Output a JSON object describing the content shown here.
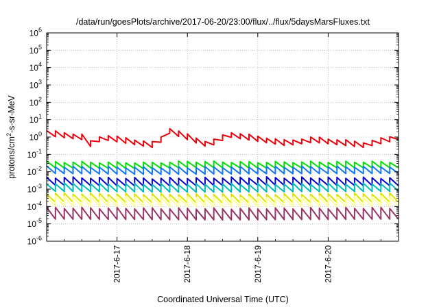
{
  "chart_data": {
    "type": "line",
    "title": "/data/run/goesPlots/archive/2017-06-20/23:00/flux/../flux/5daysMarsFluxes.txt",
    "xlabel": "Coordinated Universal Time (UTC)",
    "ylabel_parts": [
      "protons/cm",
      "2",
      "-s-sr-MeV"
    ],
    "y_scale": "log",
    "ylim_exponents": [
      -6,
      6
    ],
    "y_ticks": [
      {
        "base": "10",
        "exp": "-6"
      },
      {
        "base": "10",
        "exp": "-5"
      },
      {
        "base": "10",
        "exp": "-4"
      },
      {
        "base": "10",
        "exp": "-3"
      },
      {
        "base": "10",
        "exp": "-2"
      },
      {
        "base": "10",
        "exp": "-1"
      },
      {
        "base": "10",
        "exp": "0"
      },
      {
        "base": "10",
        "exp": "1"
      },
      {
        "base": "10",
        "exp": "2"
      },
      {
        "base": "10",
        "exp": "3"
      },
      {
        "base": "10",
        "exp": "4"
      },
      {
        "base": "10",
        "exp": "5"
      },
      {
        "base": "10",
        "exp": "6"
      }
    ],
    "x_range_days": [
      "2017-06-16 00:00",
      "2017-06-21 00:00"
    ],
    "x_ticks": [
      {
        "label": "2017-6-17",
        "date": "2017-06-17"
      },
      {
        "label": "2017-6-18",
        "date": "2017-06-18"
      },
      {
        "label": "2017-6-19",
        "date": "2017-06-19"
      },
      {
        "label": "2017-6-20",
        "date": "2017-06-20"
      }
    ],
    "grid": true,
    "series": [
      {
        "color": "#e8000b",
        "sawtooth_amp_decades": 0.3,
        "envelope": [
          [
            0.0,
            0.22
          ],
          [
            0.5,
            0.0
          ],
          [
            0.6,
            -0.45
          ],
          [
            0.8,
            0.0
          ],
          [
            1.5,
            -0.45
          ],
          [
            1.6,
            -0.35
          ],
          [
            1.7,
            0.45
          ],
          [
            2.3,
            -0.45
          ],
          [
            2.6,
            0.15
          ],
          [
            3.4,
            -0.35
          ],
          [
            3.8,
            -0.15
          ],
          [
            4.5,
            -0.45
          ],
          [
            4.9,
            -0.1
          ],
          [
            5.0,
            0.0
          ]
        ]
      },
      {
        "color": "#00e000",
        "sawtooth_amp_decades": 0.35,
        "envelope": [
          [
            0.0,
            -1.6
          ],
          [
            1.5,
            -1.65
          ],
          [
            2.0,
            -1.58
          ],
          [
            3.0,
            -1.62
          ],
          [
            4.0,
            -1.6
          ],
          [
            5.0,
            -1.6
          ]
        ]
      },
      {
        "color": "#1177ee",
        "sawtooth_amp_decades": 0.4,
        "envelope": [
          [
            0.0,
            -1.9
          ],
          [
            1.5,
            -1.95
          ],
          [
            3.0,
            -1.92
          ],
          [
            5.0,
            -1.9
          ]
        ]
      },
      {
        "color": "#0000cc",
        "sawtooth_amp_decades": 0.45,
        "envelope": [
          [
            0.0,
            -2.55
          ],
          [
            1.5,
            -2.6
          ],
          [
            3.0,
            -2.55
          ],
          [
            5.0,
            -2.58
          ]
        ]
      },
      {
        "color": "#00bbbb",
        "sawtooth_amp_decades": 0.45,
        "envelope": [
          [
            0.0,
            -2.9
          ],
          [
            2.0,
            -2.95
          ],
          [
            5.0,
            -2.9
          ]
        ]
      },
      {
        "color": "#e0e000",
        "sawtooth_amp_decades": 0.5,
        "envelope": [
          [
            0.0,
            -3.5
          ],
          [
            2.5,
            -3.55
          ],
          [
            5.0,
            -3.5
          ]
        ]
      },
      {
        "color": "#ffff99",
        "sawtooth_amp_decades": 0.55,
        "envelope": [
          [
            0.0,
            -3.7
          ],
          [
            2.5,
            -3.75
          ],
          [
            5.0,
            -3.7
          ]
        ]
      },
      {
        "color": "#993366",
        "sawtooth_amp_decades": 0.65,
        "envelope": [
          [
            0.0,
            -4.4
          ],
          [
            2.5,
            -4.45
          ],
          [
            5.0,
            -4.4
          ]
        ]
      }
    ],
    "sawtooth_period_hours": 3
  }
}
